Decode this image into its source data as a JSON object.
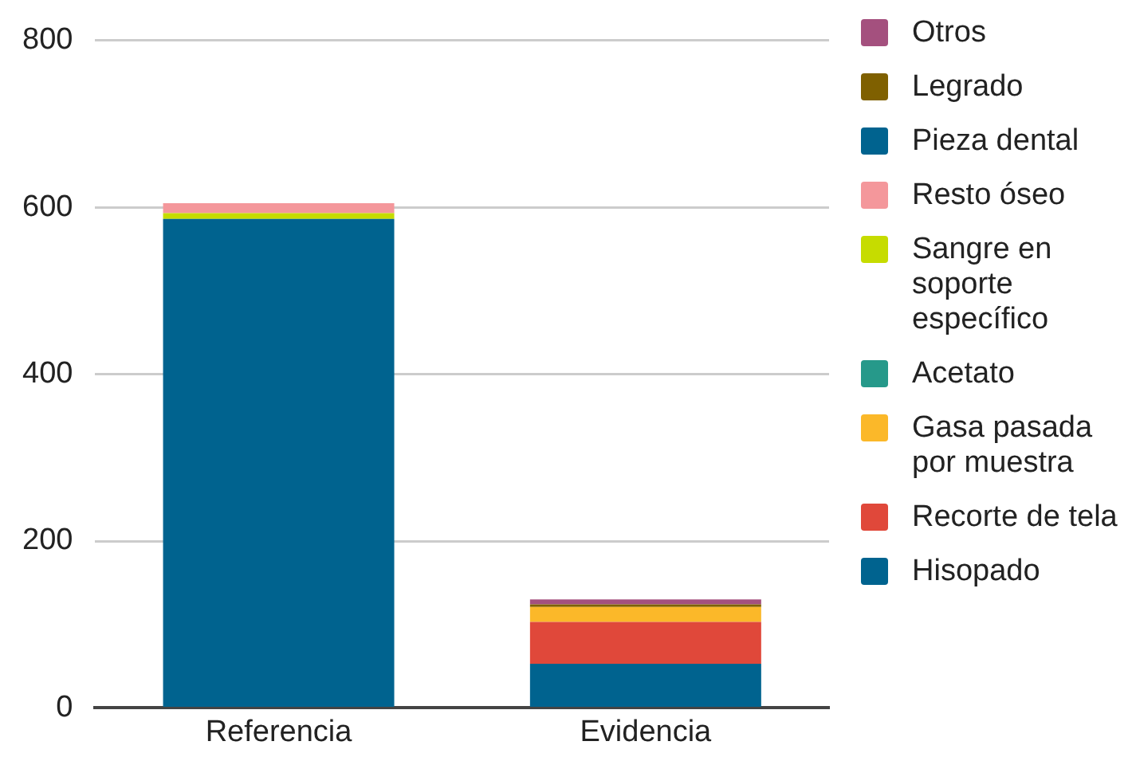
{
  "chart_data": {
    "type": "bar",
    "stacked": true,
    "categories": [
      "Referencia",
      "Evidencia"
    ],
    "series": [
      {
        "name": "Hisopado",
        "color": "#00638f",
        "values": [
          586,
          53
        ]
      },
      {
        "name": "Recorte de tela",
        "color": "#e0483a",
        "values": [
          0,
          50
        ]
      },
      {
        "name": "Gasa pasada por muestra",
        "color": "#fbb829",
        "values": [
          0,
          18
        ]
      },
      {
        "name": "Acetato",
        "color": "#26998a",
        "values": [
          0,
          0
        ]
      },
      {
        "name": "Sangre en soporte específico",
        "color": "#c6dc00",
        "values": [
          7,
          0
        ]
      },
      {
        "name": "Resto óseo",
        "color": "#f4979b",
        "values": [
          12,
          0
        ]
      },
      {
        "name": "Pieza dental",
        "color": "#00638f",
        "values": [
          0,
          0
        ]
      },
      {
        "name": "Legrado",
        "color": "#7f6000",
        "values": [
          0,
          3
        ]
      },
      {
        "name": "Otros",
        "color": "#a4507e",
        "values": [
          0,
          6
        ]
      }
    ],
    "ylim": [
      0,
      800
    ],
    "yticks": [
      0,
      200,
      400,
      600,
      800
    ],
    "grid": "y",
    "legend": "right"
  }
}
